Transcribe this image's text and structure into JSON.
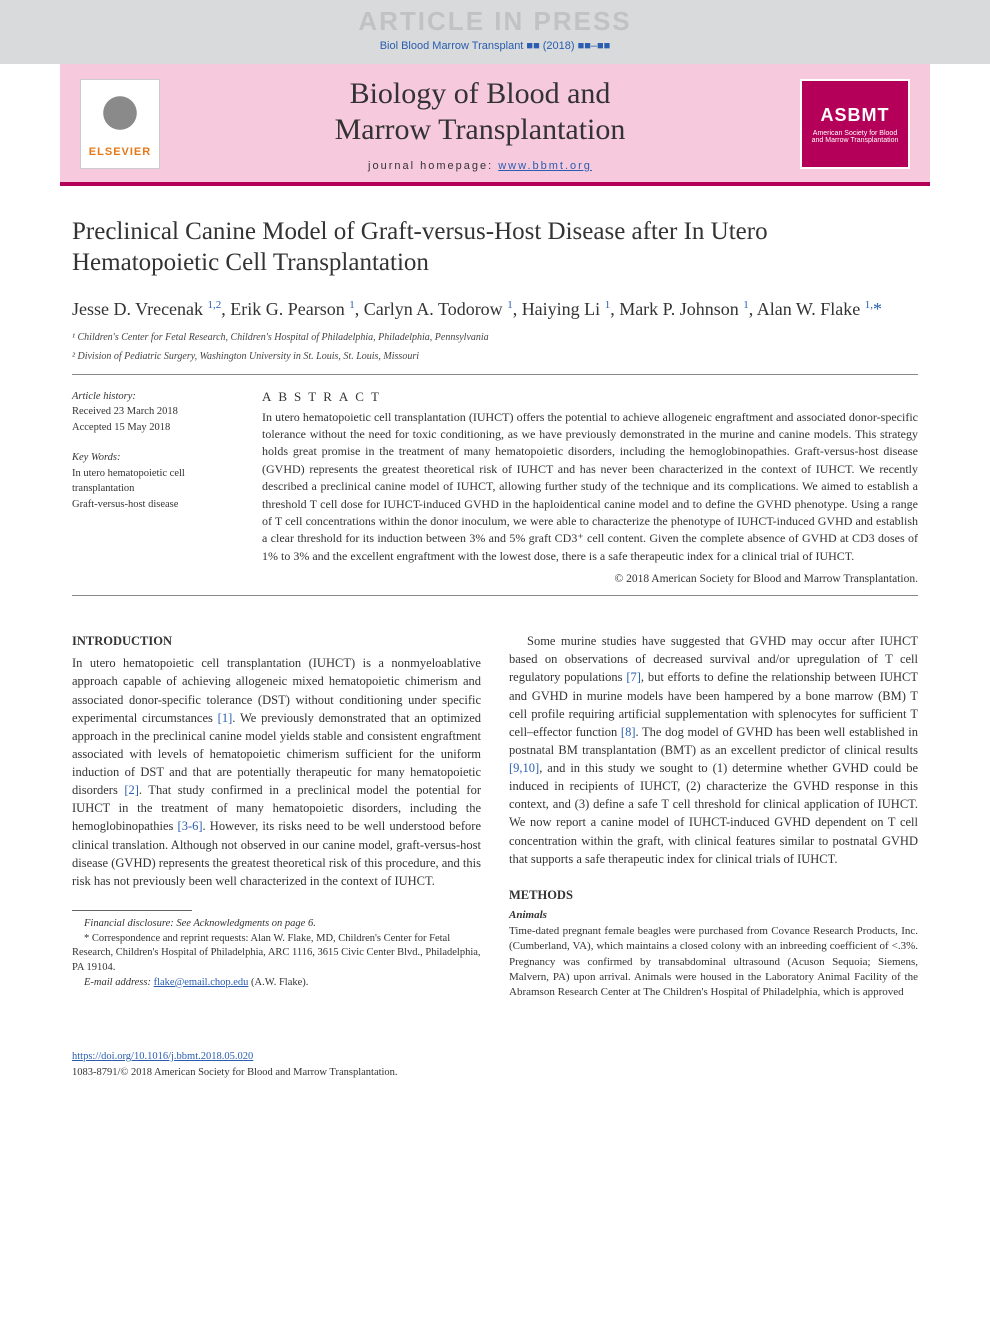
{
  "watermark": {
    "text": "ARTICLE IN PRESS",
    "citation": "Biol Blood Marrow Transplant ■■ (2018) ■■–■■"
  },
  "banner": {
    "elsevier_label": "ELSEVIER",
    "journal_title_line1": "Biology of Blood and",
    "journal_title_line2": "Marrow Transplantation",
    "homepage_label": "journal homepage: ",
    "homepage_url": "www.bbmt.org",
    "badge_main": "ASBMT",
    "badge_sub1": "American Society for Blood",
    "badge_sub2": "and Marrow Transplantation",
    "colors": {
      "banner_bg": "#f7c9dd",
      "accent": "#b5005a",
      "link": "#2a5db0",
      "elsevier_orange": "#e67817"
    }
  },
  "article": {
    "title": "Preclinical Canine Model of Graft-versus-Host Disease after In Utero Hematopoietic Cell Transplantation",
    "authors_html": "Jesse D. Vrecenak <sup>1,2</sup>, Erik G. Pearson <sup>1</sup>, Carlyn A. Todorow <sup>1</sup>, Haiying Li <sup>1</sup>, Mark P. Johnson <sup>1</sup>, Alan W. Flake <sup>1,</sup><span class='corr'>*</span>",
    "affiliations": [
      "¹ Children's Center for Fetal Research, Children's Hospital of Philadelphia, Philadelphia, Pennsylvania",
      "² Division of Pediatric Surgery, Washington University in St. Louis, St. Louis, Missouri"
    ]
  },
  "meta": {
    "history_label": "Article history:",
    "received": "Received 23 March 2018",
    "accepted": "Accepted 15 May 2018",
    "keywords_label": "Key Words:",
    "keywords": [
      "In utero hematopoietic cell transplantation",
      "Graft-versus-host disease"
    ]
  },
  "abstract": {
    "label": "ABSTRACT",
    "text": "In utero hematopoietic cell transplantation (IUHCT) offers the potential to achieve allogeneic engraftment and associated donor-specific tolerance without the need for toxic conditioning, as we have previously demonstrated in the murine and canine models. This strategy holds great promise in the treatment of many hematopoietic disorders, including the hemoglobinopathies. Graft-versus-host disease (GVHD) represents the greatest theoretical risk of IUHCT and has never been characterized in the context of IUHCT. We recently described a preclinical canine model of IUHCT, allowing further study of the technique and its complications. We aimed to establish a threshold T cell dose for IUHCT-induced GVHD in the haploidentical canine model and to define the GVHD phenotype. Using a range of T cell concentrations within the donor inoculum, we were able to characterize the phenotype of IUHCT-induced GVHD and establish a clear threshold for its induction between 3% and 5% graft CD3⁺ cell content. Given the complete absence of GVHD at CD3 doses of 1% to 3% and the excellent engraftment with the lowest dose, there is a safe therapeutic index for a clinical trial of IUHCT.",
    "copyright": "© 2018 American Society for Blood and Marrow Transplantation."
  },
  "sections": {
    "introduction": {
      "heading": "INTRODUCTION",
      "para1": "In utero hematopoietic cell transplantation (IUHCT) is a nonmyeloablative approach capable of achieving allogeneic mixed hematopoietic chimerism and associated donor-specific tolerance (DST) without conditioning under specific experimental circumstances [1]. We previously demonstrated that an optimized approach in the preclinical canine model yields stable and consistent engraftment associated with levels of hematopoietic chimerism sufficient for the uniform induction of DST and that are potentially therapeutic for many hematopoietic disorders [2]. That study confirmed in a preclinical model the potential for IUHCT in the treatment of many hematopoietic disorders, including the hemoglobinopathies [3-6]. However, its risks need to be well understood before clinical translation. Although not observed in our canine model, graft-versus-host disease (GVHD) represents the greatest theoretical risk of this procedure, and this risk has not previously been well characterized in the context of IUHCT.",
      "para2": "Some murine studies have suggested that GVHD may occur after IUHCT based on observations of decreased survival and/or upregulation of T cell regulatory populations [7], but efforts to define the relationship between IUHCT and GVHD in murine models have been hampered by a bone marrow (BM) T cell profile requiring artificial supplementation with splenocytes for sufficient T cell–effector function [8]. The dog model of GVHD has been well established in postnatal BM transplantation (BMT) as an excellent predictor of clinical results [9,10], and in this study we sought to (1) determine whether GVHD could be induced in recipients of IUHCT, (2) characterize the GVHD response in this context, and (3) define a safe T cell threshold for clinical application of IUHCT. We now report a canine model of IUHCT-induced GVHD dependent on T cell concentration within the graft, with clinical features similar to postnatal GVHD that supports a safe therapeutic index for clinical trials of IUHCT."
    },
    "methods": {
      "heading": "METHODS",
      "animals_heading": "Animals",
      "animals_text": "Time-dated pregnant female beagles were purchased from Covance Research Products, Inc. (Cumberland, VA), which maintains a closed colony with an inbreeding coefficient of <.3%. Pregnancy was confirmed by transabdominal ultrasound (Acuson Sequoia; Siemens, Malvern, PA) upon arrival. Animals were housed in the Laboratory Animal Facility of the Abramson Research Center at The Children's Hospital of Philadelphia, which is approved"
    }
  },
  "footnotes": {
    "financial": "Financial disclosure: See Acknowledgments on page 6.",
    "correspondence": "* Correspondence and reprint requests: Alan W. Flake, MD, Children's Center for Fetal Research, Children's Hospital of Philadelphia, ARC 1116, 3615 Civic Center Blvd., Philadelphia, PA 19104.",
    "email_label": "E-mail address: ",
    "email": "flake@email.chop.edu",
    "email_suffix": " (A.W. Flake)."
  },
  "footer": {
    "doi": "https://doi.org/10.1016/j.bbmt.2018.05.020",
    "issn_copyright": "1083-8791/© 2018 American Society for Blood and Marrow Transplantation."
  },
  "refs": {
    "r1": "[1]",
    "r2": "[2]",
    "r36": "[3-6]",
    "r7": "[7]",
    "r8": "[8]",
    "r910": "[9,10]"
  }
}
